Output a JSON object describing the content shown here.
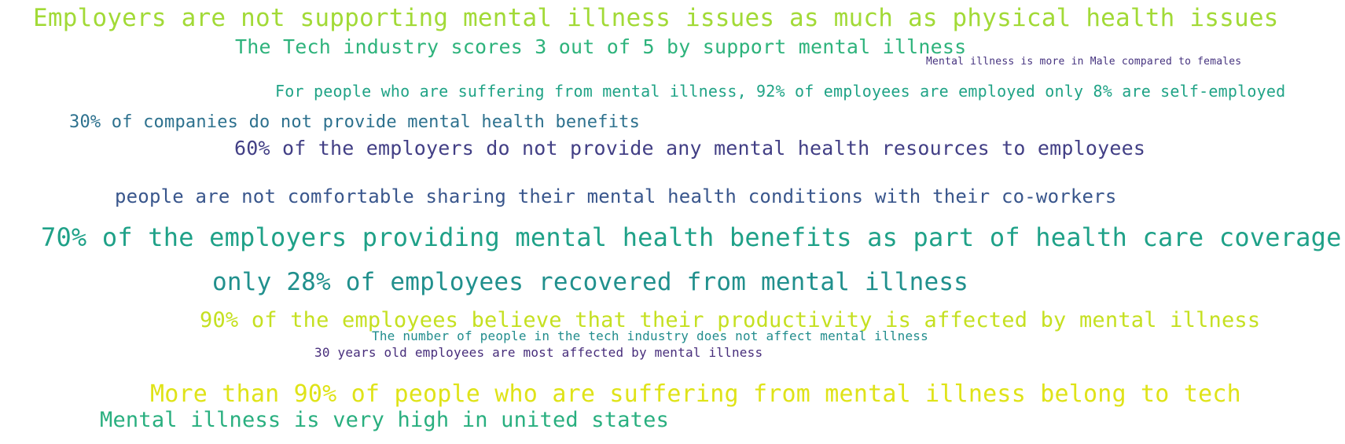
{
  "word_cloud": {
    "phrases": [
      {
        "text": "Employers are not supporting mental illness issues as much as physical health issues",
        "color": "#a2da37"
      },
      {
        "text": "The Tech industry scores 3 out of 5 by support mental illness",
        "color": "#2eb37c"
      },
      {
        "text": "Mental illness is more in Male compared to females",
        "color": "#46337f"
      },
      {
        "text": "For people who are suffering from mental illness, 92% of employees are employed only 8% are self-employed",
        "color": "#20a386"
      },
      {
        "text": "30% of companies do not provide mental health benefits",
        "color": "#2d718e"
      },
      {
        "text": "60% of the employers do not provide any mental health resources to employees",
        "color": "#423f85"
      },
      {
        "text": "people are not comfortable sharing their mental health conditions with their co-workers",
        "color": "#39568c"
      },
      {
        "text": "70% of the employers providing mental health benefits as part of health care coverage",
        "color": "#1fa188"
      },
      {
        "text": "only 28% of employees recovered from mental illness",
        "color": "#21908d"
      },
      {
        "text": "90% of the employees believe that their productivity is affected by mental illness",
        "color": "#c5e021"
      },
      {
        "text": "The number of people in the tech industry does not affect mental illness",
        "color": "#228d8d"
      },
      {
        "text": "30 years old employees are most affected by mental illness",
        "color": "#472d7b"
      },
      {
        "text": "More than 90% of people who are suffering from mental illness belong to tech",
        "color": "#dfe318"
      },
      {
        "text": "Mental illness is very high in united states",
        "color": "#29af7f"
      }
    ]
  }
}
